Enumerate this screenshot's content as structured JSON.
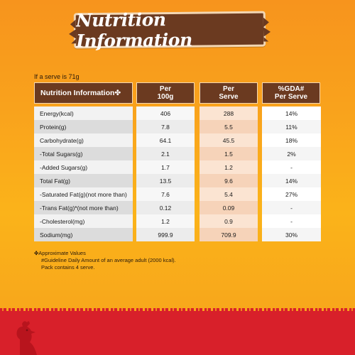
{
  "title": "Nutrition Information",
  "serve_note": "If a serve is 71g",
  "headers": {
    "label": "Nutrition Information✤",
    "per100_line1": "Per",
    "per100_line2": "100g",
    "perserve_line1": "Per",
    "perserve_line2": "Serve",
    "gda_line1": "%GDA#",
    "gda_line2": "Per Serve"
  },
  "rows": [
    {
      "label": "Energy(kcal)",
      "per100": "406",
      "perserve": "288",
      "gda": "14%"
    },
    {
      "label": "Protein(g)",
      "per100": "7.8",
      "perserve": "5.5",
      "gda": "11%"
    },
    {
      "label": "Carbohydrate(g)",
      "per100": "64.1",
      "perserve": "45.5",
      "gda": "18%"
    },
    {
      "label": " -Total Sugars(g)",
      "per100": "2.1",
      "perserve": "1.5",
      "gda": "2%"
    },
    {
      "label": " -Added Sugars(g)",
      "per100": "1.7",
      "perserve": "1.2",
      "gda": "-"
    },
    {
      "label": "Total Fat(g)",
      "per100": "13.5",
      "perserve": "9.6",
      "gda": "14%"
    },
    {
      "label": " -Saturated Fat(g)(not more than)",
      "per100": "7.6",
      "perserve": "5.4",
      "gda": "27%"
    },
    {
      "label": " -Trans Fat(g)*(not more than)",
      "per100": "0.12",
      "perserve": "0.09",
      "gda": "-"
    },
    {
      "label": " -Cholesterol(mg)",
      "per100": "1.2",
      "perserve": "0.9",
      "gda": "-"
    },
    {
      "label": "Sodium(mg)",
      "per100": "999.9",
      "perserve": "709.9",
      "gda": "30%"
    }
  ],
  "footnotes": {
    "line1": "✤Approximate Values",
    "line2": "#Guideline Daily Amount of an average adult (2000 kcal).",
    "line3": "Pack contains 4 serve."
  },
  "colors": {
    "header_bg": "#6b3a20",
    "accent_red": "#d8202a",
    "background_orange": "#f9a21c"
  },
  "icons": {
    "rooster": "rooster-silhouette-icon"
  }
}
